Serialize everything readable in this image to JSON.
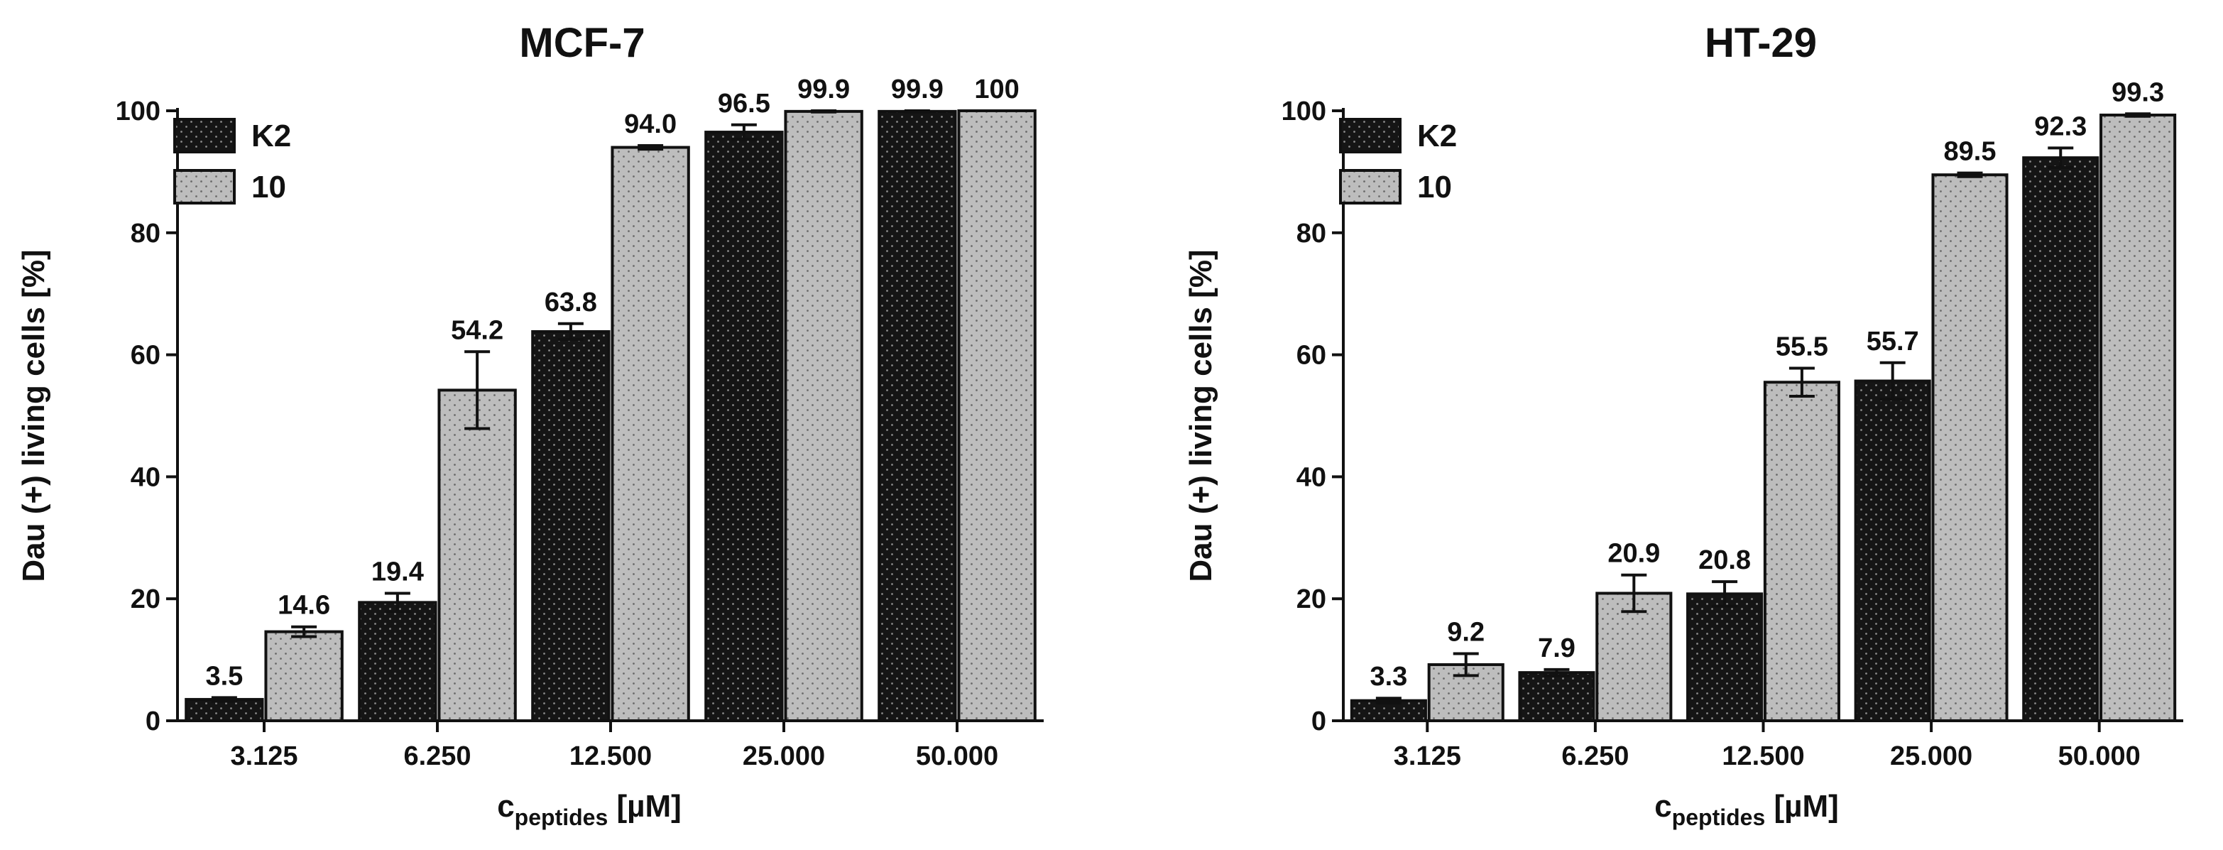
{
  "patterns": {
    "K2": {
      "fill": "#151515",
      "dots": "#8a8a8a"
    },
    "10": {
      "fill": "#bdbdbd",
      "dots": "#6a6a6a"
    }
  },
  "chart_data": [
    {
      "type": "bar",
      "title": "MCF-7",
      "ylabel": "Dau (+) living cells [%]",
      "xlabel_main": "c",
      "xlabel_sub": "peptides",
      "xlabel_tail": " [µM]",
      "categories": [
        "3.125",
        "6.250",
        "12.500",
        "25.000",
        "50.000"
      ],
      "ylim": [
        0,
        100
      ],
      "yticks": [
        0,
        20,
        40,
        60,
        80,
        100
      ],
      "legend_position": "top-left",
      "grid": false,
      "series": [
        {
          "name": "K2",
          "pattern": "K2",
          "values": [
            3.5,
            19.4,
            63.8,
            96.5,
            99.9
          ],
          "labels": [
            "3.5",
            "19.4",
            "63.8",
            "96.5",
            "99.9"
          ],
          "errors": [
            0.3,
            1.5,
            1.3,
            1.2,
            0.1
          ]
        },
        {
          "name": "10",
          "pattern": "10",
          "values": [
            14.6,
            54.2,
            94.0,
            99.9,
            100
          ],
          "labels": [
            "14.6",
            "54.2",
            "94.0",
            "99.9",
            "100"
          ],
          "errors": [
            0.8,
            6.3,
            0.3,
            0.1,
            0.0
          ]
        }
      ]
    },
    {
      "type": "bar",
      "title": "HT-29",
      "ylabel": "Dau (+) living cells [%]",
      "xlabel_main": "c",
      "xlabel_sub": "peptides",
      "xlabel_tail": " [µM]",
      "categories": [
        "3.125",
        "6.250",
        "12.500",
        "25.000",
        "50.000"
      ],
      "ylim": [
        0,
        100
      ],
      "yticks": [
        0,
        20,
        40,
        60,
        80,
        100
      ],
      "legend_position": "top-left",
      "grid": false,
      "series": [
        {
          "name": "K2",
          "pattern": "K2",
          "values": [
            3.3,
            7.9,
            20.8,
            55.7,
            92.3
          ],
          "labels": [
            "3.3",
            "7.9",
            "20.8",
            "55.7",
            "92.3"
          ],
          "errors": [
            0.4,
            0.5,
            2.0,
            3.0,
            1.6
          ]
        },
        {
          "name": "10",
          "pattern": "10",
          "values": [
            9.2,
            20.9,
            55.5,
            89.5,
            99.3
          ],
          "labels": [
            "9.2",
            "20.9",
            "55.5",
            "89.5",
            "99.3"
          ],
          "errors": [
            1.8,
            3.0,
            2.3,
            0.3,
            0.2
          ]
        }
      ]
    }
  ]
}
